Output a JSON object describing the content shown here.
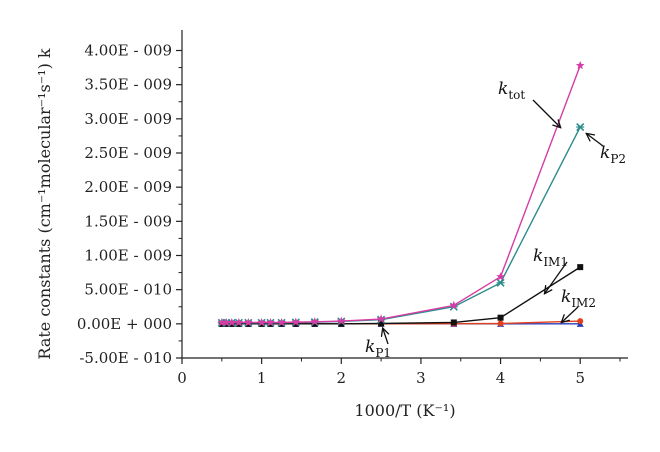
{
  "chart_data": {
    "type": "line",
    "xlabel": "1000/T (K⁻¹)",
    "ylabel": "Rate constants (cm⁻¹molecular⁻¹s⁻¹) k",
    "xlim": [
      0,
      5.6
    ],
    "ylim": [
      -5e-10,
      4.3e-09
    ],
    "xticks": [
      0,
      1,
      2,
      3,
      4,
      5
    ],
    "xtick_labels": [
      "0",
      "1",
      "2",
      "3",
      "4",
      "5"
    ],
    "yticks": [
      -5e-10,
      0,
      5e-10,
      1e-09,
      1.5e-09,
      2e-09,
      2.5e-09,
      3e-09,
      3.5e-09,
      4e-09
    ],
    "ytick_labels": [
      "-5.00E - 010",
      "0.00E + 000",
      "5.00E - 010",
      "1.00E - 009",
      "1.50E - 009",
      "2.00E - 009",
      "2.50E - 009",
      "3.00E - 009",
      "3.50E - 009",
      "4.00E - 009"
    ],
    "grid": false,
    "x": [
      0.5,
      0.556,
      0.625,
      0.714,
      0.833,
      1.0,
      1.111,
      1.25,
      1.429,
      1.667,
      2.0,
      2.5,
      3.413,
      4.0,
      5.0
    ],
    "series": [
      {
        "name": "tot",
        "label_main": "k",
        "label_sub": "tot",
        "color": "#d63ca6",
        "marker": "star",
        "values": [
          2e-11,
          2e-11,
          2e-11,
          2e-11,
          2e-11,
          2e-11,
          2e-11,
          2e-11,
          2.5e-11,
          3e-11,
          4e-11,
          7e-11,
          2.7e-10,
          6.9e-10,
          3.78e-09
        ]
      },
      {
        "name": "P2",
        "label_main": "k",
        "label_sub": "P2",
        "color": "#2e8b8b",
        "marker": "x",
        "values": [
          1.5e-11,
          1.5e-11,
          1.5e-11,
          1.5e-11,
          1.5e-11,
          1.5e-11,
          1.5e-11,
          1.5e-11,
          2e-11,
          2.5e-11,
          3.5e-11,
          6e-11,
          2.5e-10,
          6e-10,
          2.88e-09
        ]
      },
      {
        "name": "IM1",
        "label_main": "k",
        "label_sub": "IM1",
        "color": "#111111",
        "marker": "square",
        "values": [
          0,
          0,
          0,
          0,
          0,
          0,
          0,
          0,
          0,
          0,
          0,
          5e-12,
          2e-11,
          9e-11,
          8.3e-10
        ]
      },
      {
        "name": "IM2",
        "label_main": "k",
        "label_sub": "IM2",
        "color": "#e0401c",
        "marker": "circle",
        "values": [
          0,
          0,
          0,
          0,
          0,
          0,
          0,
          0,
          0,
          0,
          0,
          0,
          2e-12,
          5e-12,
          4e-11
        ]
      },
      {
        "name": "P1",
        "label_main": "k",
        "label_sub": "P1",
        "color": "#2a3fb8",
        "marker": "triangle",
        "values": [
          0,
          0,
          0,
          0,
          0,
          0,
          0,
          0,
          0,
          0,
          0,
          0,
          0,
          0,
          0
        ]
      }
    ]
  }
}
